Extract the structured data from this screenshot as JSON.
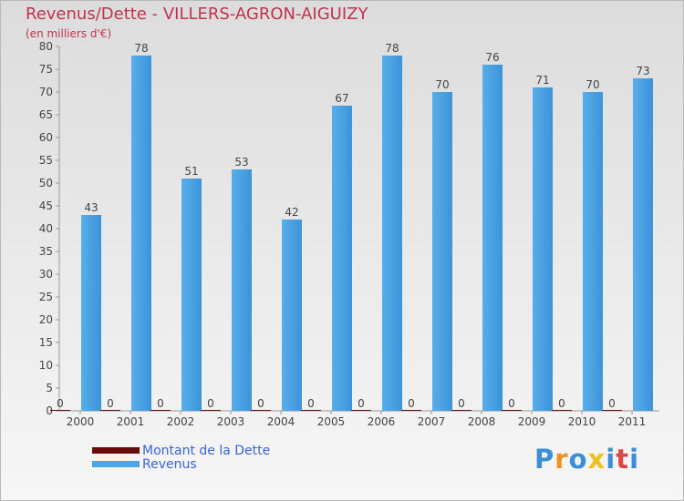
{
  "chart_data": {
    "type": "bar",
    "title": "Revenus/Dette - VILLERS-AGRON-AIGUIZY",
    "subtitle": "(en milliers d'€)",
    "categories": [
      "2000",
      "2001",
      "2002",
      "2003",
      "2004",
      "2005",
      "2006",
      "2007",
      "2008",
      "2009",
      "2010",
      "2011"
    ],
    "series": [
      {
        "name": "Montant de la Dette",
        "color": "#6b0b0b",
        "values": [
          0,
          0,
          0,
          0,
          0,
          0,
          0,
          0,
          0,
          0,
          0,
          0
        ]
      },
      {
        "name": "Revenus",
        "color": "#4da6e8",
        "values": [
          43,
          78,
          51,
          53,
          42,
          67,
          78,
          70,
          76,
          71,
          70,
          73
        ]
      }
    ],
    "ylim": [
      0,
      80
    ],
    "yticks": [
      0,
      5,
      10,
      15,
      20,
      25,
      30,
      35,
      40,
      45,
      50,
      55,
      60,
      65,
      70,
      75,
      80
    ],
    "grid": false,
    "legend_position": "bottom-left"
  },
  "logo": {
    "letters": [
      "P",
      "r",
      "o",
      "x",
      "i",
      "t",
      "i"
    ],
    "colors": [
      "#3c8fd6",
      "#f09020",
      "#3c8fd6",
      "#f0c020",
      "#3c8fd6",
      "#e04545",
      "#3c8fd6"
    ]
  }
}
